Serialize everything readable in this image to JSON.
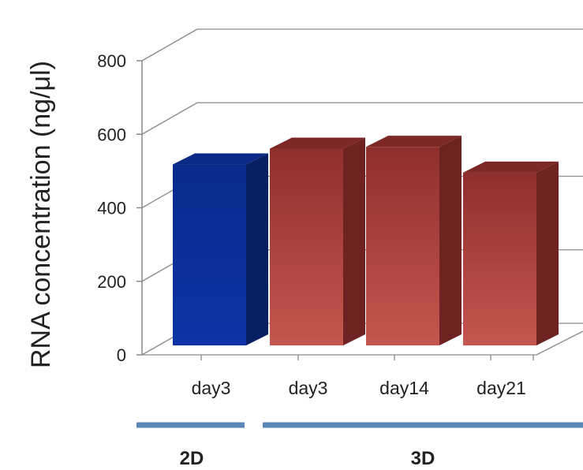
{
  "chart_data": {
    "type": "bar",
    "ylabel": "RNA concentration (ng/μl)",
    "ylim": [
      0,
      800
    ],
    "yticks": [
      "0",
      "200",
      "400",
      "600",
      "800"
    ],
    "categories": [
      "day3",
      "day3",
      "day14",
      "day21"
    ],
    "values": [
      535,
      578,
      583,
      513
    ],
    "groups": [
      {
        "label": "2D",
        "categories": [
          0
        ]
      },
      {
        "label": "3D",
        "categories": [
          1,
          2,
          3
        ]
      }
    ],
    "grid": true,
    "bar_colors": [
      "#0b2a8a",
      "#a33a38",
      "#a33a38",
      "#a33a38"
    ],
    "group_line_color": "#5a86b8"
  }
}
